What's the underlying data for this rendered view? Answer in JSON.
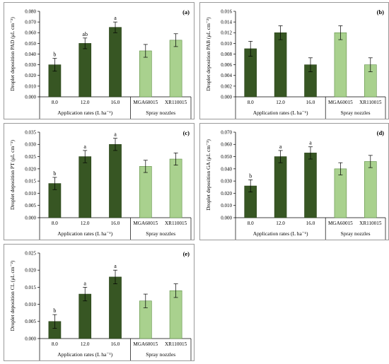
{
  "colors": {
    "dark_bar": "#375623",
    "light_bar": "#a9d18e",
    "axis": "#000000"
  },
  "group_labels": {
    "application": "Application rates (L ha⁻¹)",
    "nozzles": "Spray nozzles"
  },
  "chart_data": [
    {
      "type": "bar",
      "panel": "(a)",
      "ylabel": "Droplet deposition PAD (μL cm⁻²)",
      "categories": [
        "8.0",
        "12.0",
        "16.0",
        "MGA60015",
        "XR110015"
      ],
      "values": [
        0.03,
        0.05,
        0.065,
        0.043,
        0.053
      ],
      "errors": [
        0.006,
        0.005,
        0.005,
        0.006,
        0.006
      ],
      "letters": [
        "b",
        "ab",
        "a",
        "",
        ""
      ],
      "ylim": [
        0,
        0.08
      ],
      "yticks": [
        "0.000",
        "0.010",
        "0.020",
        "0.030",
        "0.040",
        "0.050",
        "0.060",
        "0.070",
        "0.080"
      ]
    },
    {
      "type": "bar",
      "panel": "(b)",
      "ylabel": "Droplet deposition PAB (μL cm⁻²)",
      "categories": [
        "8.0",
        "12.0",
        "16.0",
        "MGA60015",
        "XR110015"
      ],
      "values": [
        0.009,
        0.012,
        0.006,
        0.012,
        0.006
      ],
      "errors": [
        0.0014,
        0.0013,
        0.0013,
        0.0013,
        0.0013
      ],
      "letters": [
        "",
        "",
        "",
        "",
        ""
      ],
      "ylim": [
        0,
        0.016
      ],
      "yticks": [
        "0.000",
        "0.002",
        "0.004",
        "0.006",
        "0.008",
        "0.010",
        "0.012",
        "0.014",
        "0.016"
      ]
    },
    {
      "type": "bar",
      "panel": "(c)",
      "ylabel": "Droplet deposition PT (μL cm⁻²)",
      "categories": [
        "8.0",
        "12.0",
        "16.0",
        "MGA60015",
        "XR110015"
      ],
      "values": [
        0.014,
        0.025,
        0.03,
        0.021,
        0.024
      ],
      "errors": [
        0.0025,
        0.0025,
        0.0025,
        0.0025,
        0.0025
      ],
      "letters": [
        "b",
        "a",
        "a",
        "",
        ""
      ],
      "ylim": [
        0,
        0.035
      ],
      "yticks": [
        "0.000",
        "0.005",
        "0.010",
        "0.015",
        "0.020",
        "0.025",
        "0.030",
        "0.035"
      ]
    },
    {
      "type": "bar",
      "panel": "(d)",
      "ylabel": "Droplet deposition GA (μL cm⁻²)",
      "categories": [
        "8.0",
        "12.0",
        "16.0",
        "MGA60015",
        "XR110015"
      ],
      "values": [
        0.026,
        0.05,
        0.053,
        0.04,
        0.046
      ],
      "errors": [
        0.005,
        0.005,
        0.005,
        0.005,
        0.005
      ],
      "letters": [
        "b",
        "a",
        "a",
        "",
        ""
      ],
      "ylim": [
        0,
        0.07
      ],
      "yticks": [
        "0.000",
        "0.010",
        "0.020",
        "0.030",
        "0.040",
        "0.050",
        "0.060",
        "0.070"
      ]
    },
    {
      "type": "bar",
      "panel": "(e)",
      "ylabel": "Droplet deposition CL (μL cm⁻²)",
      "categories": [
        "8.0",
        "12.0",
        "16.0",
        "MGA60015",
        "XR110015"
      ],
      "values": [
        0.005,
        0.013,
        0.018,
        0.011,
        0.014
      ],
      "errors": [
        0.002,
        0.002,
        0.002,
        0.002,
        0.002
      ],
      "letters": [
        "b",
        "a",
        "a",
        "",
        ""
      ],
      "ylim": [
        0,
        0.025
      ],
      "yticks": [
        "0.000",
        "0.005",
        "0.010",
        "0.015",
        "0.020",
        "0.025"
      ]
    }
  ]
}
